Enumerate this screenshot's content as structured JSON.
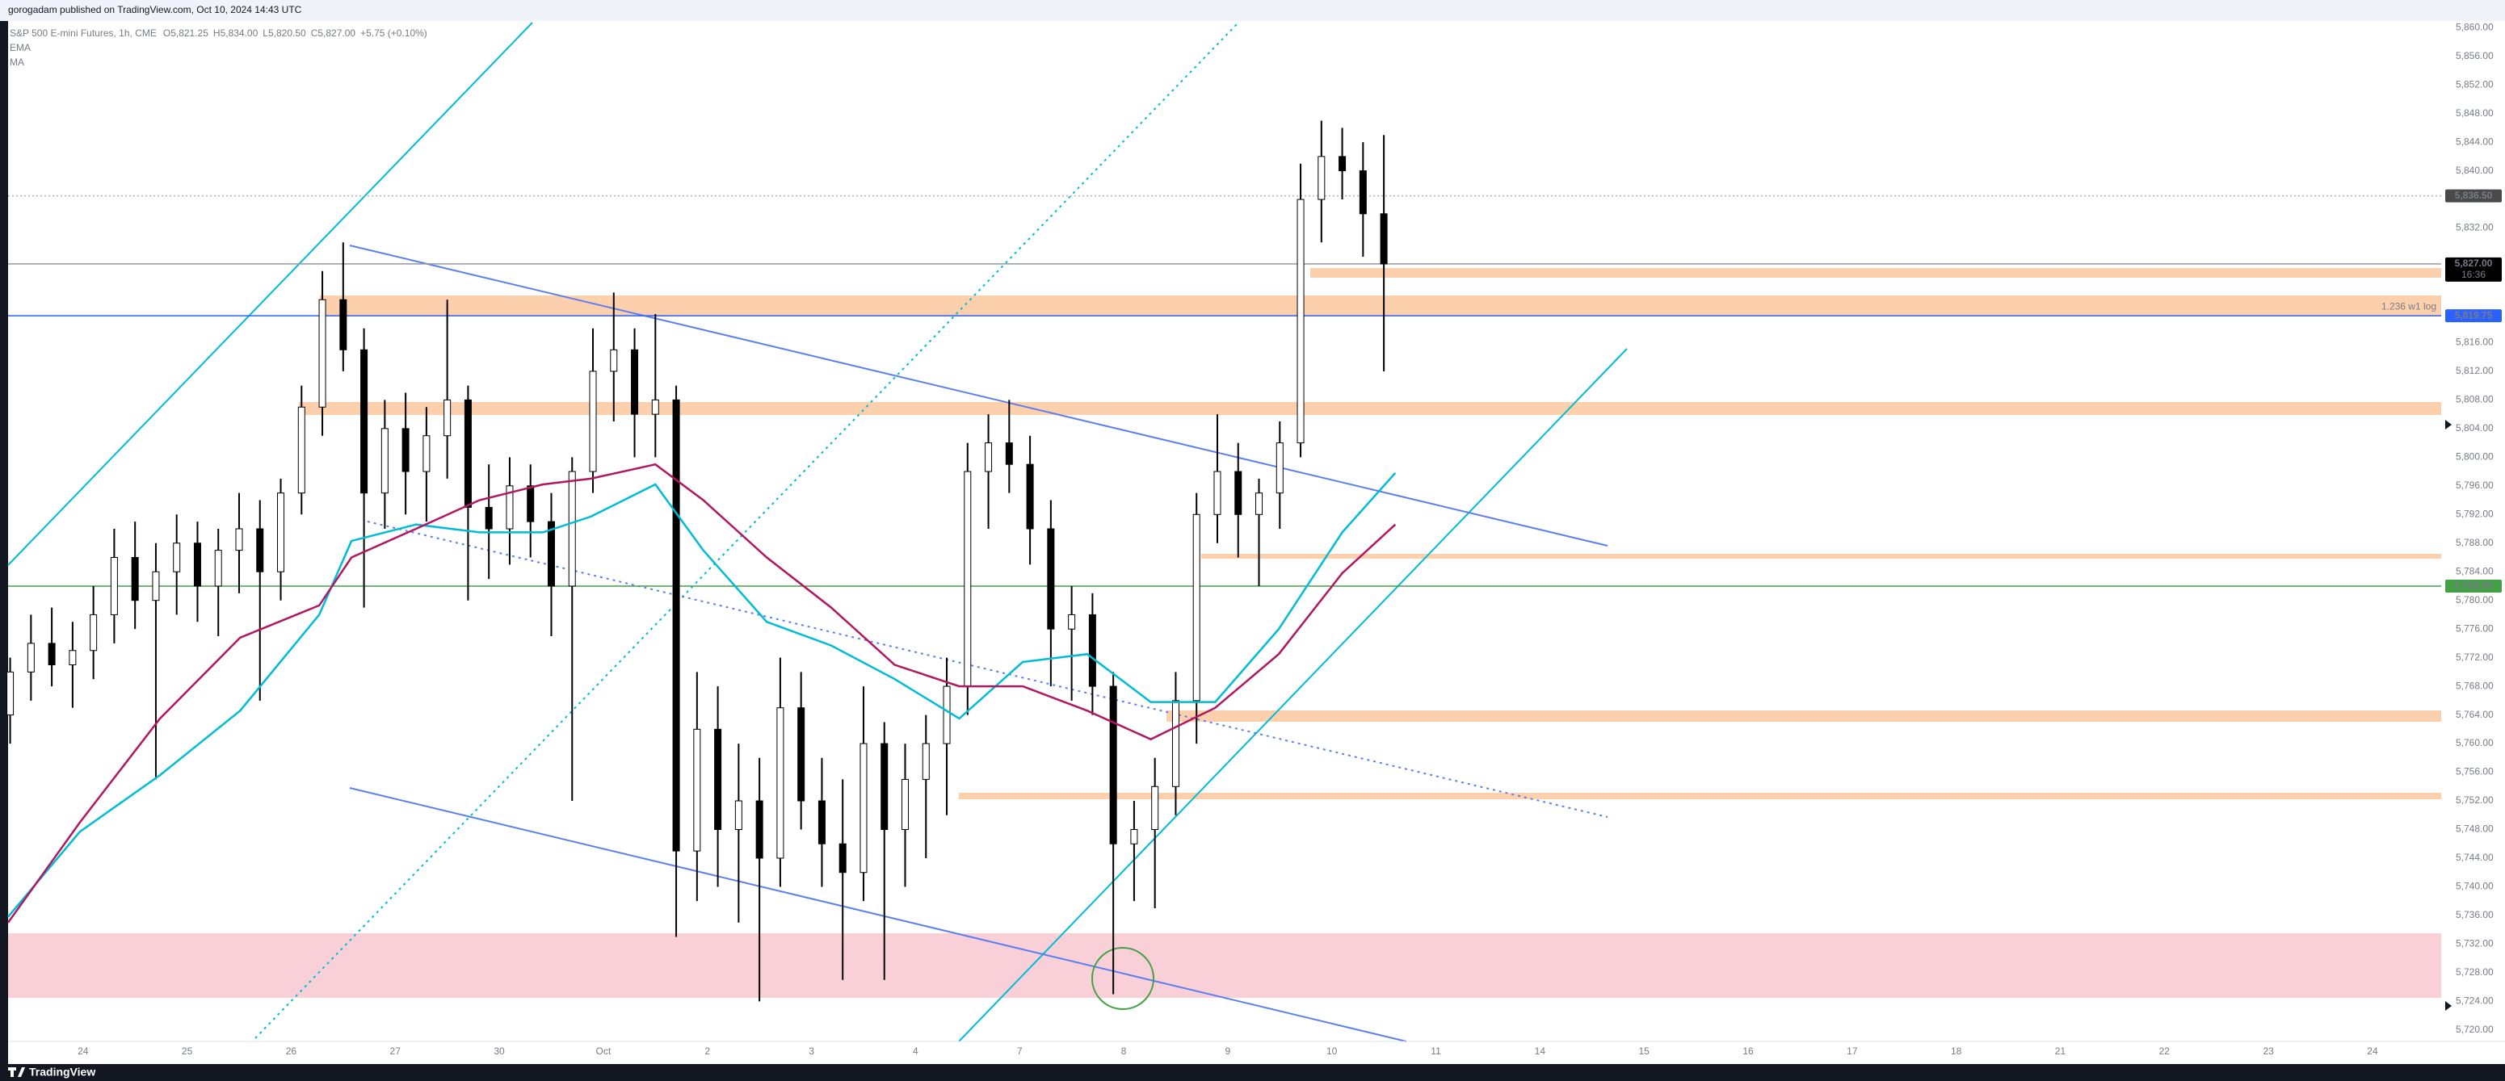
{
  "header": {
    "publisher": "gorogadam published on TradingView.com, Oct 10, 2024 14:43 UTC"
  },
  "footer": {
    "brand": "TradingView"
  },
  "chart_data": {
    "type": "candlestick",
    "symbol": "S&P 500 E-mini Futures, 1h, CME",
    "ohlc_legend": [
      "O5,821.25",
      "H5,834.00",
      "L5,820.50",
      "C5,827.00",
      "+5.75 (+0.10%)"
    ],
    "xlim": [
      -0.72,
      22.66
    ],
    "ylim": [
      5718.4,
      5860.7
    ],
    "grid": false,
    "xticks": [
      {
        "value": 0,
        "label": "24"
      },
      {
        "value": 1,
        "label": "25"
      },
      {
        "value": 2,
        "label": "26"
      },
      {
        "value": 3,
        "label": "27"
      },
      {
        "value": 4,
        "label": "30"
      },
      {
        "value": 5,
        "label": "Oct"
      },
      {
        "value": 6,
        "label": "2"
      },
      {
        "value": 7,
        "label": "3"
      },
      {
        "value": 8,
        "label": "4"
      },
      {
        "value": 9,
        "label": "7"
      },
      {
        "value": 10,
        "label": "8"
      },
      {
        "value": 11,
        "label": "9"
      },
      {
        "value": 12,
        "label": "10"
      },
      {
        "value": 13,
        "label": "11"
      },
      {
        "value": 14,
        "label": "14"
      },
      {
        "value": 15,
        "label": "15"
      },
      {
        "value": 16,
        "label": "16"
      },
      {
        "value": 17,
        "label": "17"
      },
      {
        "value": 18,
        "label": "18"
      },
      {
        "value": 19,
        "label": "21"
      },
      {
        "value": 20,
        "label": "22"
      },
      {
        "value": 21,
        "label": "23"
      },
      {
        "value": 22,
        "label": "24"
      }
    ],
    "yticks": [
      {
        "value": 5860,
        "label": "5,860.00"
      },
      {
        "value": 5856,
        "label": "5,856.00"
      },
      {
        "value": 5852,
        "label": "5,852.00"
      },
      {
        "value": 5848,
        "label": "5,848.00"
      },
      {
        "value": 5844,
        "label": "5,844.00"
      },
      {
        "value": 5840,
        "label": "5,840.00"
      },
      {
        "value": 5832,
        "label": "5,832.00"
      },
      {
        "value": 5816,
        "label": "5,816.00"
      },
      {
        "value": 5812,
        "label": "5,812.00"
      },
      {
        "value": 5808,
        "label": "5,808.00"
      },
      {
        "value": 5804,
        "label": "5,804.00"
      },
      {
        "value": 5800,
        "label": "5,800.00"
      },
      {
        "value": 5796,
        "label": "5,796.00"
      },
      {
        "value": 5792,
        "label": "5,792.00"
      },
      {
        "value": 5788,
        "label": "5,788.00"
      },
      {
        "value": 5784,
        "label": "5,784.00"
      },
      {
        "value": 5780,
        "label": "5,780.00"
      },
      {
        "value": 5776,
        "label": "5,776.00"
      },
      {
        "value": 5772,
        "label": "5,772.00"
      },
      {
        "value": 5768,
        "label": "5,768.00"
      },
      {
        "value": 5764,
        "label": "5,764.00"
      },
      {
        "value": 5760,
        "label": "5,760.00"
      },
      {
        "value": 5756,
        "label": "5,756.00"
      },
      {
        "value": 5752,
        "label": "5,752.00"
      },
      {
        "value": 5748,
        "label": "5,748.00"
      },
      {
        "value": 5744,
        "label": "5,744.00"
      },
      {
        "value": 5740,
        "label": "5,740.00"
      },
      {
        "value": 5736,
        "label": "5,736.00"
      },
      {
        "value": 5732,
        "label": "5,732.00"
      },
      {
        "value": 5728,
        "label": "5,728.00"
      },
      {
        "value": 5724,
        "label": "5,724.00"
      },
      {
        "value": 5720,
        "label": "5,720.00"
      }
    ],
    "candles": {
      "up_color": "#ffffff",
      "down_color": "#000000",
      "outline": "#000000",
      "x": [
        -0.7,
        -0.5,
        -0.3,
        -0.1,
        0.1,
        0.3,
        0.5,
        0.7,
        0.9,
        1.1,
        1.3,
        1.5,
        1.7,
        1.9,
        2.1,
        2.3,
        2.5,
        2.7,
        2.9,
        3.1,
        3.3,
        3.5,
        3.7,
        3.9,
        4.1,
        4.3,
        4.5,
        4.7,
        4.9,
        5.1,
        5.3,
        5.5,
        5.7,
        5.9,
        6.1,
        6.3,
        6.5,
        6.7,
        6.9,
        7.1,
        7.3,
        7.5,
        7.7,
        7.9,
        8.1,
        8.3,
        8.5,
        8.7,
        8.9,
        9.1,
        9.3,
        9.5,
        9.7,
        9.9,
        10.1,
        10.3,
        10.5,
        10.7,
        10.9,
        11.1,
        11.3,
        11.5,
        11.7,
        11.9,
        12.1,
        12.3,
        12.5
      ],
      "open": [
        5764,
        5770,
        5774,
        5771,
        5773,
        5778,
        5786,
        5780,
        5784,
        5788,
        5782,
        5787,
        5790,
        5784,
        5795,
        5807,
        5822,
        5815,
        5795,
        5804,
        5798,
        5803,
        5808,
        5793,
        5790,
        5796,
        5791,
        5782,
        5798,
        5812,
        5815,
        5806,
        5808,
        5745,
        5762,
        5748,
        5752,
        5744,
        5765,
        5752,
        5746,
        5742,
        5760,
        5748,
        5755,
        5760,
        5768,
        5798,
        5802,
        5799,
        5790,
        5776,
        5778,
        5768,
        5746,
        5748,
        5754,
        5766,
        5792,
        5798,
        5792,
        5795,
        5802,
        5836,
        5842,
        5840,
        5834
      ],
      "high": [
        5772,
        5778,
        5779,
        5777,
        5782,
        5790,
        5791,
        5788,
        5792,
        5791,
        5790,
        5795,
        5794,
        5797,
        5810,
        5826,
        5830,
        5818,
        5808,
        5809,
        5807,
        5822,
        5810,
        5799,
        5800,
        5799,
        5795,
        5800,
        5818,
        5823,
        5818,
        5820,
        5810,
        5770,
        5768,
        5760,
        5758,
        5772,
        5770,
        5758,
        5755,
        5768,
        5763,
        5760,
        5764,
        5772,
        5802,
        5806,
        5808,
        5803,
        5794,
        5782,
        5781,
        5770,
        5752,
        5758,
        5770,
        5795,
        5806,
        5802,
        5797,
        5805,
        5841,
        5847,
        5846,
        5844,
        5845
      ],
      "low": [
        5760,
        5766,
        5768,
        5765,
        5769,
        5774,
        5776,
        5755,
        5778,
        5777,
        5775,
        5781,
        5766,
        5780,
        5792,
        5803,
        5812,
        5779,
        5790,
        5792,
        5791,
        5797,
        5780,
        5783,
        5785,
        5786,
        5775,
        5752,
        5795,
        5805,
        5800,
        5800,
        5733,
        5738,
        5740,
        5735,
        5724,
        5740,
        5748,
        5740,
        5727,
        5738,
        5727,
        5740,
        5744,
        5750,
        5764,
        5790,
        5795,
        5785,
        5768,
        5766,
        5764,
        5725,
        5738,
        5737,
        5750,
        5760,
        5788,
        5786,
        5782,
        5790,
        5800,
        5830,
        5836,
        5828,
        5812
      ],
      "close": [
        5770,
        5774,
        5771,
        5773,
        5778,
        5786,
        5780,
        5784,
        5788,
        5782,
        5787,
        5790,
        5784,
        5795,
        5807,
        5822,
        5815,
        5795,
        5804,
        5798,
        5803,
        5808,
        5793,
        5790,
        5796,
        5791,
        5782,
        5798,
        5812,
        5815,
        5806,
        5808,
        5745,
        5762,
        5748,
        5752,
        5744,
        5765,
        5752,
        5746,
        5742,
        5760,
        5748,
        5755,
        5760,
        5768,
        5798,
        5802,
        5799,
        5790,
        5776,
        5778,
        5768,
        5746,
        5748,
        5754,
        5766,
        5792,
        5798,
        5792,
        5795,
        5802,
        5836,
        5842,
        5840,
        5834,
        5827
      ]
    },
    "series": [
      {
        "name": "EMA",
        "color": "#00bcd4",
        "x": [
          -0.72,
          -0.03,
          0.74,
          1.51,
          2.27,
          2.58,
          3.2,
          3.81,
          4.42,
          4.88,
          5.5,
          5.96,
          6.57,
          7.19,
          7.8,
          8.42,
          9.03,
          9.65,
          10.26,
          10.88,
          11.49,
          12.1,
          12.61
        ],
        "values": [
          5735.8,
          5747.7,
          5755.6,
          5764.6,
          5778,
          5788.3,
          5790.6,
          5789.5,
          5789.5,
          5791.7,
          5796.2,
          5787,
          5777,
          5773.7,
          5769,
          5763.5,
          5771.4,
          5772.5,
          5765.8,
          5765.8,
          5776,
          5789.5,
          5797.8
        ]
      },
      {
        "name": "MA",
        "color": "#b0175e",
        "x": [
          -0.72,
          -0.03,
          0.74,
          1.51,
          2.27,
          2.58,
          3.2,
          3.81,
          4.42,
          4.88,
          5.5,
          5.96,
          6.57,
          7.19,
          7.8,
          8.42,
          9.03,
          9.65,
          10.26,
          10.88,
          11.49,
          12.1,
          12.61
        ],
        "values": [
          5735,
          5749,
          5763.5,
          5774.8,
          5779.3,
          5786,
          5790,
          5794,
          5796.2,
          5797,
          5799,
          5794,
          5786,
          5779,
          5771,
          5768,
          5768,
          5764.6,
          5760.6,
          5765,
          5772.5,
          5783.8,
          5790.6
        ]
      }
    ],
    "levels": [
      {
        "value": 5836.5,
        "label": "5,836.50",
        "color": "#4a4a4a",
        "line_color": "#b2b5be",
        "style": "dotted"
      },
      {
        "value": 5827,
        "label": "5,827.00",
        "countdown": "16:36",
        "color": "#000000",
        "line_color": "#9598a1",
        "style": "solid"
      },
      {
        "value": 5819.75,
        "label": "5,819.75",
        "annotation": "1.236 w1 log",
        "color": "#2962ff",
        "line_color": "#2962ff",
        "style": "solid"
      },
      {
        "value": 5782,
        "label": "5,782.00",
        "color": "#43a047",
        "line_color": "#43a047",
        "style": "solid"
      }
    ]
  }
}
